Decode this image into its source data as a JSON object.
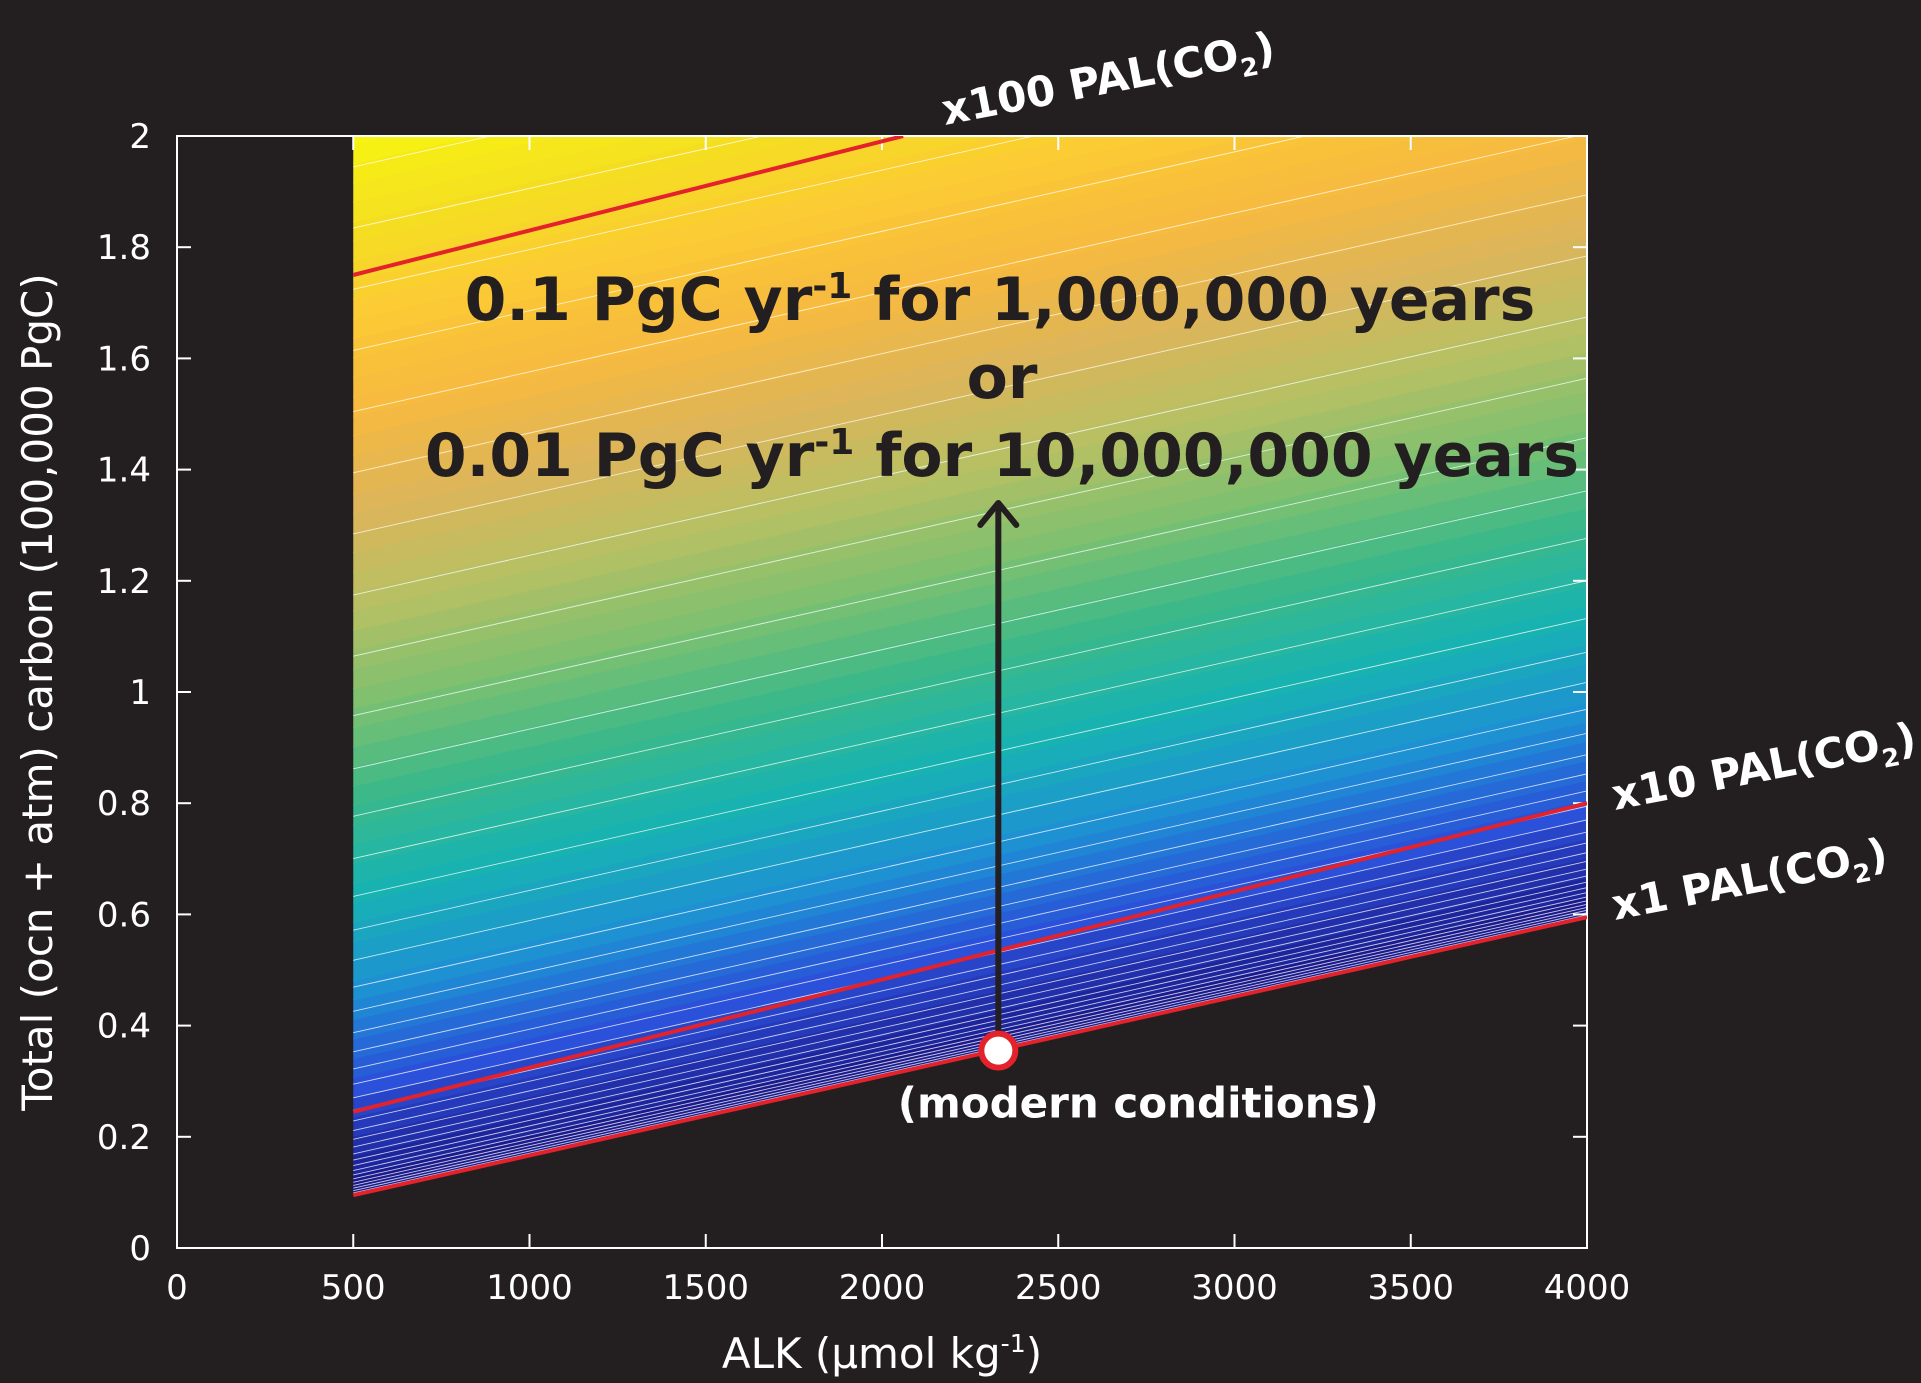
{
  "chart_data": {
    "type": "heatmap",
    "xlabel": {
      "main": "ALK (μmol kg",
      "sup": "-1",
      "tail": ")"
    },
    "ylabel": "Total (ocn + atm) carbon (100,000 PgC)",
    "xlim": [
      0,
      4000
    ],
    "ylim": [
      0,
      2
    ],
    "xticks": [
      "0",
      "500",
      "1000",
      "1500",
      "2000",
      "2500",
      "3000",
      "3500",
      "4000"
    ],
    "yticks": [
      "0",
      "0.2",
      "0.4",
      "0.6",
      "0.8",
      "1",
      "1.2",
      "1.4",
      "1.6",
      "1.8",
      "2"
    ],
    "data_region": {
      "alk_min": 500,
      "alk_max": 4000
    },
    "contour_lines": [
      {
        "name": "x1 PAL",
        "color": "#e3222b",
        "points": [
          [
            500,
            0.095
          ],
          [
            4000,
            0.595
          ]
        ]
      },
      {
        "name": "x10 PAL",
        "color": "#e3222b",
        "points": [
          [
            500,
            0.245
          ],
          [
            4000,
            0.8
          ]
        ]
      },
      {
        "name": "x100 PAL",
        "color": "#e3222b",
        "points": [
          [
            500,
            1.75
          ],
          [
            2060,
            2.0
          ]
        ]
      }
    ],
    "contour_labels": [
      {
        "pre": "x100 PAL(CO",
        "sub": "2",
        "post": ")"
      },
      {
        "pre": "x10 PAL(CO",
        "sub": "2",
        "post": ")"
      },
      {
        "pre": "x1 PAL(CO",
        "sub": "2",
        "post": ")"
      }
    ],
    "marker": {
      "x": 2330,
      "y": 0.355,
      "label": "(modern conditions)"
    },
    "arrow": {
      "x": 2330,
      "y_from": 0.37,
      "y_to": 1.34
    },
    "annotation_lines": [
      {
        "a": "0.1 PgC yr",
        "sup": "-1",
        "b": " for 1,000,000 years"
      },
      {
        "a": "or",
        "sup": "",
        "b": ""
      },
      {
        "a": "0.01 PgC yr",
        "sup": "-1",
        "b": " for 10,000,000 years"
      }
    ],
    "colormap": [
      "#1a1a8c",
      "#2b4fd9",
      "#1e90d4",
      "#17b3b3",
      "#3ab98a",
      "#7cc070",
      "#b6c064",
      "#dcb55a",
      "#f5b940",
      "#fcc935",
      "#f4e020",
      "#f7f510"
    ],
    "colors": {
      "background": "#231f20",
      "axes": "#ffffff",
      "contour": "#e3222b"
    }
  }
}
